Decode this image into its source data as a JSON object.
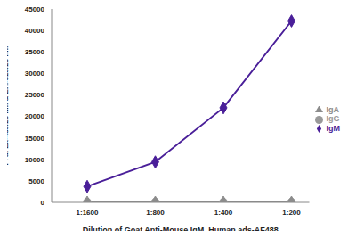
{
  "chart_data": {
    "type": "line",
    "x_label": "Dilution of Goat Anti-Mouse IgM, Human ads-AF488",
    "y_label": "FI at Ex-485/20 nm & Em-528/20 nm",
    "categories": [
      "1:1600",
      "1:800",
      "1:400",
      "1:200"
    ],
    "series": [
      {
        "name": "IgM",
        "color": "#4a1f99",
        "marker": "diamond",
        "values": [
          3700,
          9400,
          22000,
          42200
        ]
      },
      {
        "name": "IgG",
        "color": "#999999",
        "marker": "circle",
        "values": [
          100,
          100,
          100,
          100
        ]
      },
      {
        "name": "IgA",
        "color": "#8c8c8c",
        "marker": "triangle",
        "values": [
          100,
          100,
          100,
          100
        ]
      }
    ],
    "ylim": [
      0,
      45000
    ],
    "yticks": [
      0,
      5000,
      10000,
      15000,
      20000,
      25000,
      30000,
      35000,
      40000,
      45000
    ],
    "grid": false,
    "legend": "right"
  }
}
